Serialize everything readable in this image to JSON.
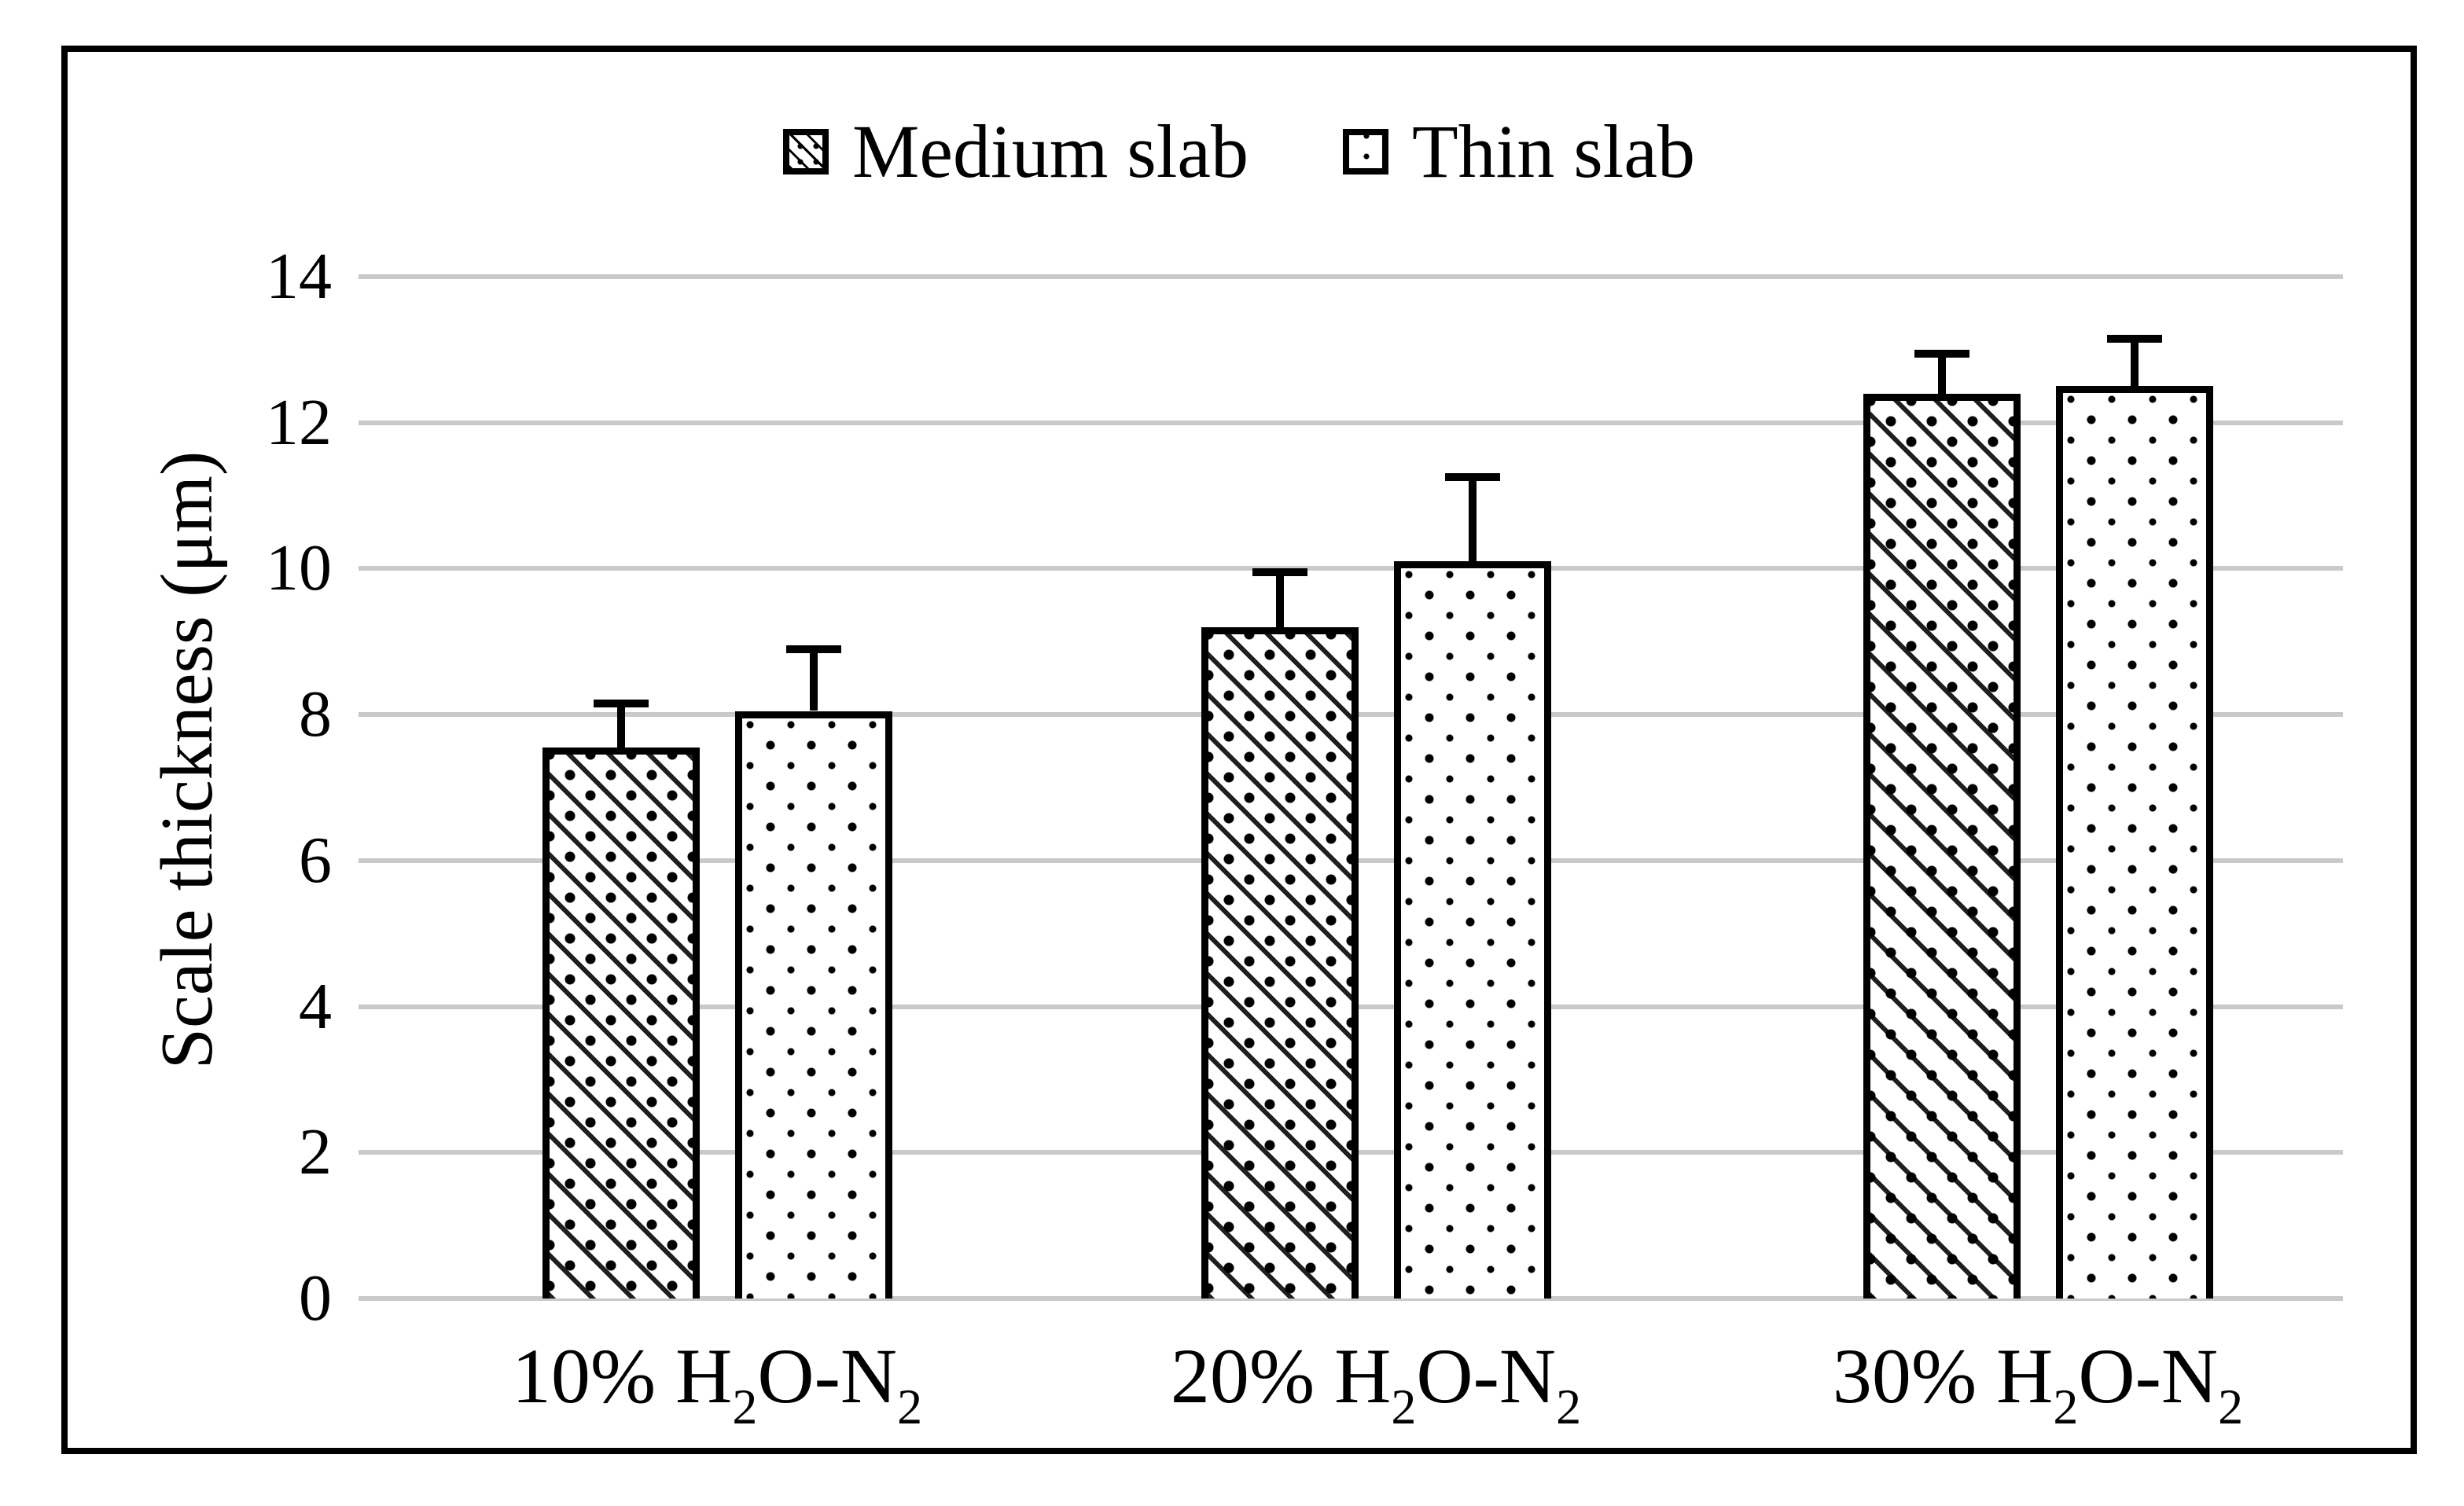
{
  "y_axis": {
    "title": "Scale thickness (μm)",
    "tick_labels": [
      "0",
      "2",
      "4",
      "6",
      "8",
      "10",
      "12",
      "14"
    ],
    "min": 0,
    "max": 14,
    "step": 2
  },
  "x_axis": {
    "categories": [
      {
        "text": "10% H2O-N2",
        "segments": [
          {
            "t": "10% H"
          },
          {
            "t": "2",
            "sub": true
          },
          {
            "t": "O-N"
          },
          {
            "t": "2",
            "sub": true
          }
        ]
      },
      {
        "text": "20% H2O-N2",
        "segments": [
          {
            "t": "20% H"
          },
          {
            "t": "2",
            "sub": true
          },
          {
            "t": "O-N"
          },
          {
            "t": "2",
            "sub": true
          }
        ]
      },
      {
        "text": "30% H2O-N2",
        "segments": [
          {
            "t": "30% H"
          },
          {
            "t": "2",
            "sub": true
          },
          {
            "t": "O-N"
          },
          {
            "t": "2",
            "sub": true
          }
        ]
      }
    ]
  },
  "chart_data": {
    "type": "bar",
    "title": "",
    "categories": [
      "10% H2O-N2",
      "20% H2O-N2",
      "30% H2O-N2"
    ],
    "series": [
      {
        "name": "Medium slab",
        "pattern": "hatch-dots",
        "values": [
          7.55,
          9.2,
          12.4
        ],
        "errors_plus": [
          0.6,
          0.75,
          0.55
        ]
      },
      {
        "name": "Thin slab",
        "pattern": "dots",
        "values": [
          8.05,
          10.1,
          12.5
        ],
        "errors_plus": [
          0.85,
          1.15,
          0.65
        ]
      }
    ],
    "xlabel": "",
    "ylabel": "Scale thickness (μm)",
    "ylim": [
      0,
      14
    ],
    "ytick_step": 2,
    "grid": true,
    "legend_position": "top-center",
    "error_bars": "upper-only with caps"
  },
  "colors": {
    "gridline": "#c9c9c9",
    "tick": "#c9c9c9",
    "frame_border": "#000000",
    "bar_border": "#000000",
    "text": "#000000",
    "background": "#ffffff"
  }
}
